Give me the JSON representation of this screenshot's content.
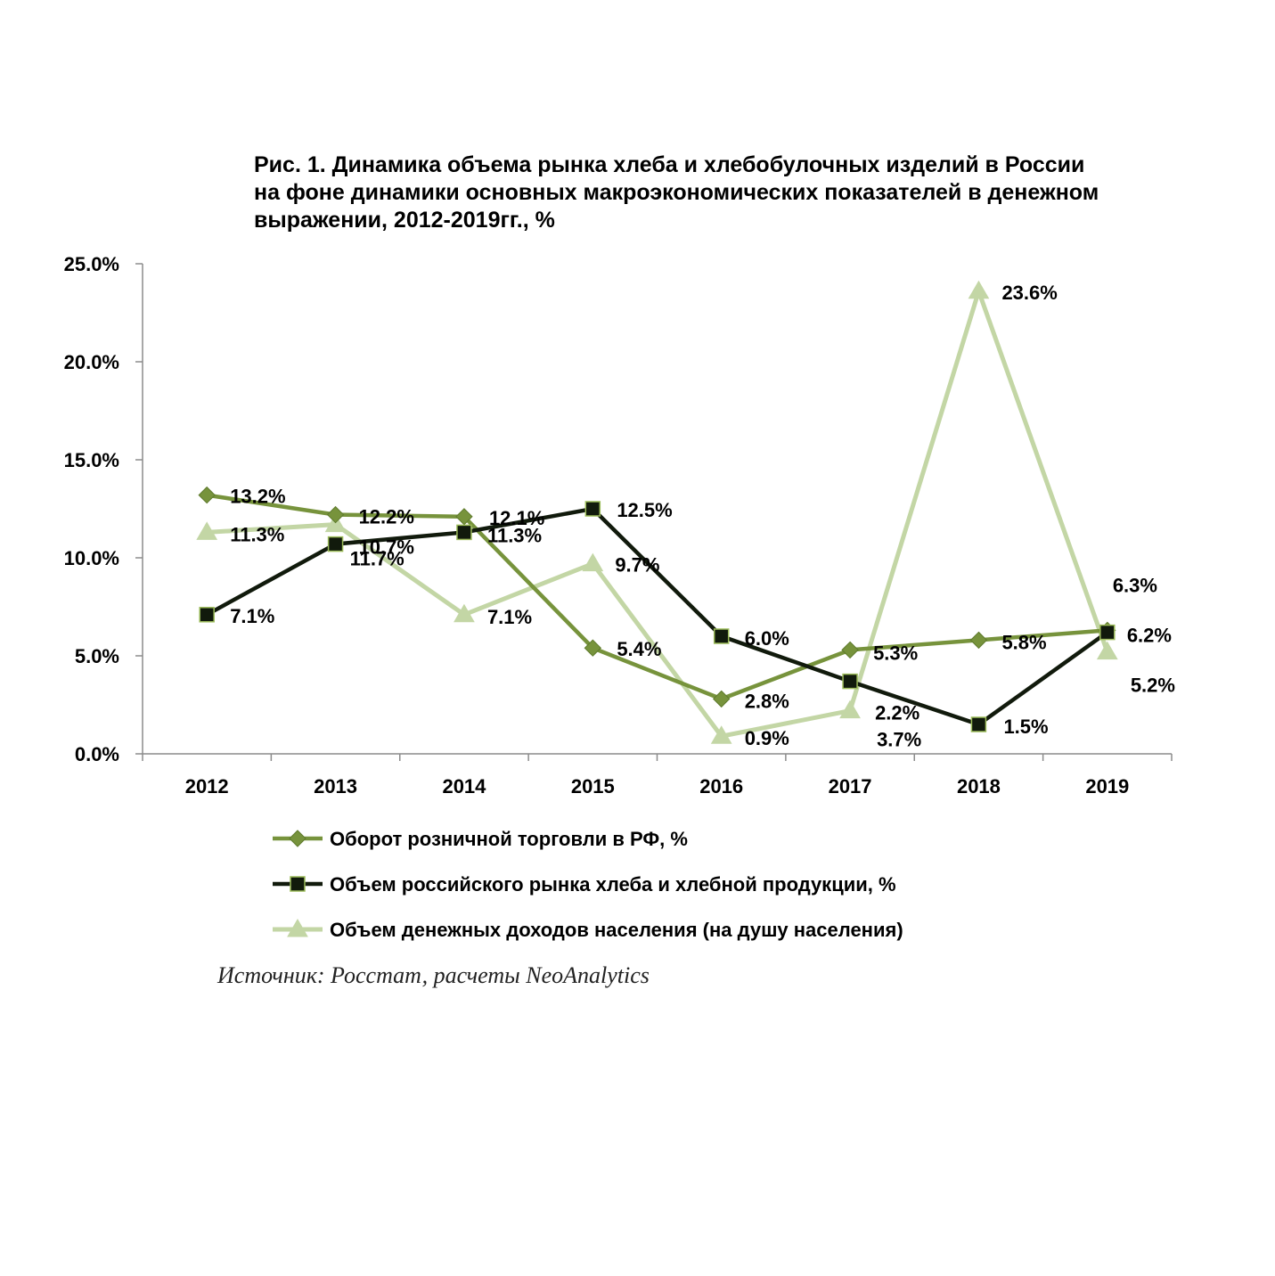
{
  "title_lines": [
    "Рис. 1. Динамика объема рынка хлеба и хлебобулочных изделий в России",
    "на фоне динамики основных макроэкономических показателей в денежном",
    "выражении, 2012-2019гг., %"
  ],
  "source": "Источник: Росстат, расчеты NeoAnalytics",
  "chart_data": {
    "type": "line",
    "title": "Рис. 1. Динамика объема рынка хлеба и хлебобулочных изделий в России на фоне динамики основных макроэкономических показателей в денежном выражении, 2012-2019гг., %",
    "xlabel": "",
    "ylabel": "",
    "ylim": [
      0,
      25
    ],
    "y_ticks": [
      0,
      5,
      10,
      15,
      20,
      25
    ],
    "y_tick_labels": [
      "0.0%",
      "5.0%",
      "10.0%",
      "15.0%",
      "20.0%",
      "25.0%"
    ],
    "categories": [
      "2012",
      "2013",
      "2014",
      "2015",
      "2016",
      "2017",
      "2018",
      "2019"
    ],
    "grid": false,
    "legend_position": "bottom",
    "series": [
      {
        "name": "Оборот розничной торговли в РФ, %",
        "marker": "diamond",
        "color": "#77933c",
        "values": [
          13.2,
          12.2,
          12.1,
          5.4,
          2.8,
          5.3,
          5.8,
          6.3
        ],
        "labels": [
          "13.2%",
          "12.2%",
          "12.1%",
          "5.4%",
          "2.8%",
          "5.3%",
          "5.8%",
          "6.3%"
        ]
      },
      {
        "name": "Объем российского рынка хлеба и хлебной продукции, %",
        "marker": "square",
        "color": "#111a0c",
        "values": [
          7.1,
          10.7,
          11.3,
          12.5,
          6.0,
          3.7,
          1.5,
          6.2
        ],
        "labels": [
          "7.1%",
          "10.7%",
          "11.3%",
          "12.5%",
          "6.0%",
          "3.7%",
          "1.5%",
          "6.2%"
        ]
      },
      {
        "name": "Объем денежных доходов населения (на душу населения)",
        "marker": "triangle",
        "color": "#c3d6a5",
        "values": [
          11.3,
          11.7,
          7.1,
          9.7,
          0.9,
          2.2,
          23.6,
          5.2
        ],
        "labels": [
          "11.3%",
          "11.7%",
          "7.1%",
          "9.7%",
          "0.9%",
          "2.2%",
          "23.6%",
          "5.2%"
        ]
      }
    ]
  }
}
